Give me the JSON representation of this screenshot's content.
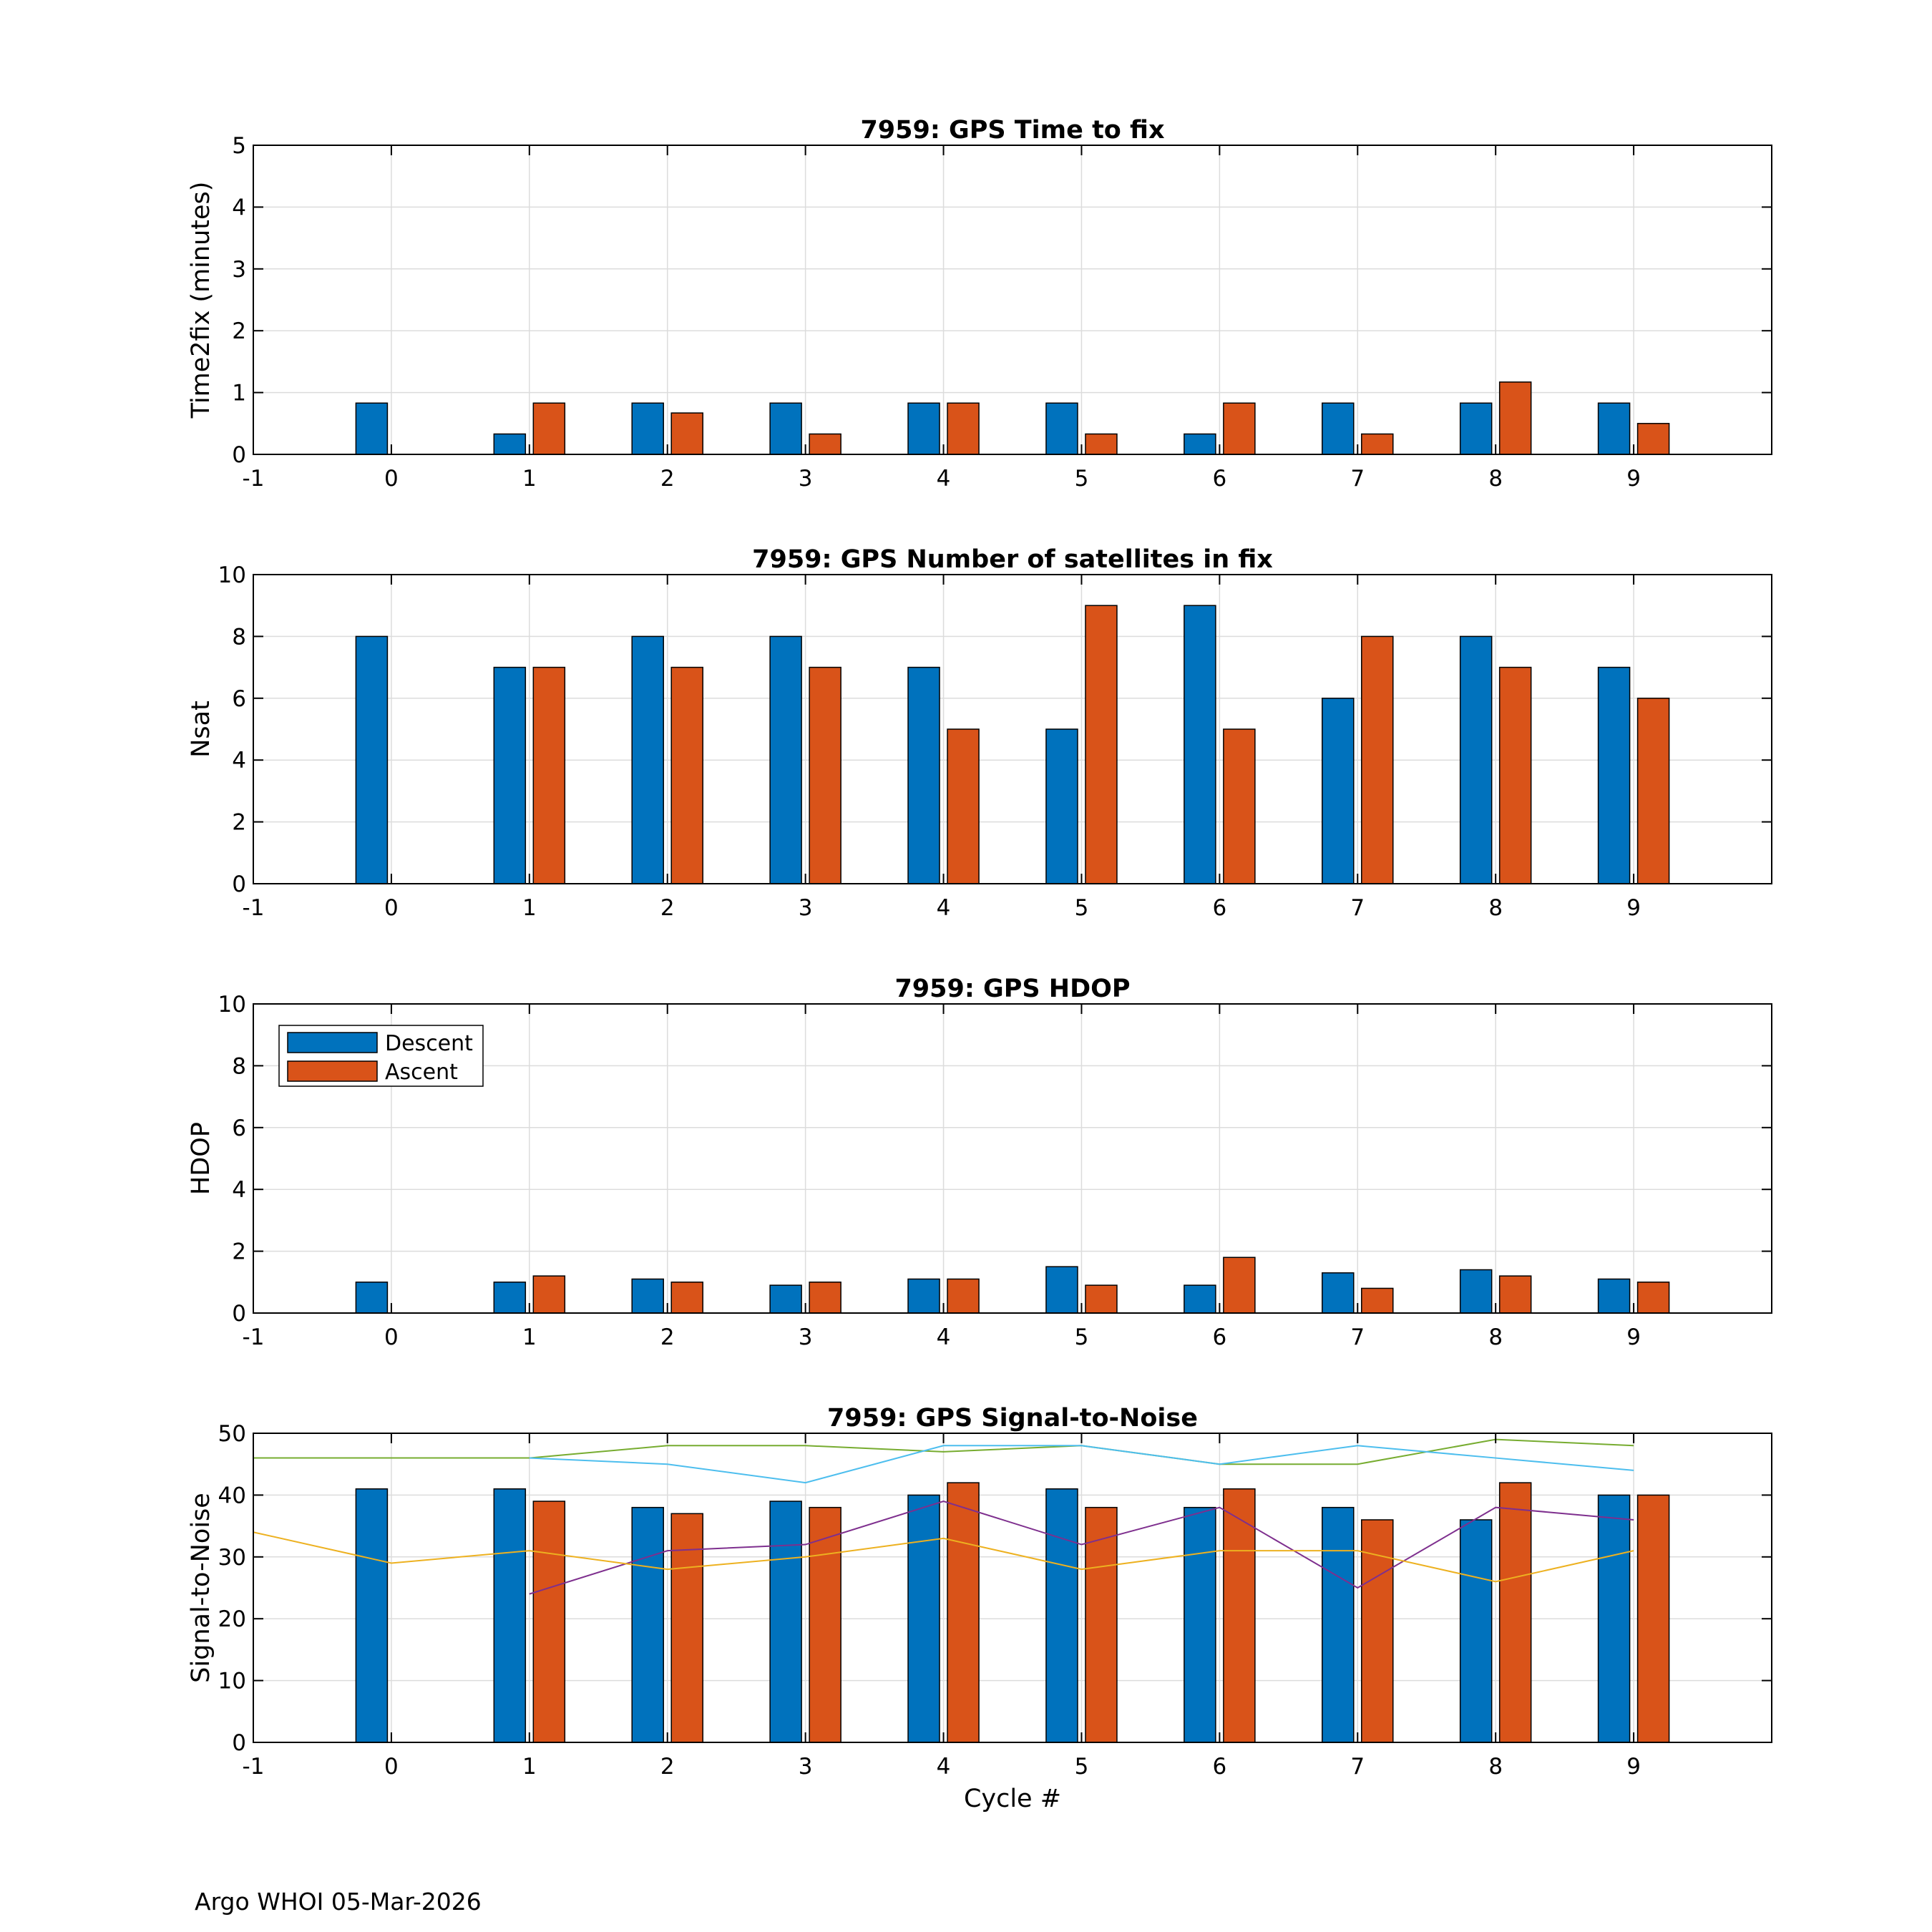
{
  "footer": "Argo WHOI 05-Mar-2026",
  "colors": {
    "descent": "#0072BD",
    "ascent": "#D95319",
    "snr_series": [
      "#77AC30",
      "#4DBEEE",
      "#7E2F8E",
      "#EDB120"
    ],
    "grid": "#dcdcdc"
  },
  "chart_data": [
    {
      "type": "bar",
      "title": "7959: GPS Time to fix",
      "xlabel": "",
      "ylabel": "Time2fix (minutes)",
      "xlim": [
        -1,
        10
      ],
      "ylim": [
        0,
        5
      ],
      "xticks": [
        -1,
        0,
        1,
        2,
        3,
        4,
        5,
        6,
        7,
        8,
        9
      ],
      "yticks": [
        0,
        1,
        2,
        3,
        4,
        5
      ],
      "categories": [
        0,
        1,
        2,
        3,
        4,
        5,
        6,
        7,
        8,
        9
      ],
      "series": [
        {
          "name": "Descent",
          "values": [
            0.83,
            0.33,
            0.83,
            0.83,
            0.83,
            0.83,
            0.33,
            0.83,
            0.83,
            0.83
          ]
        },
        {
          "name": "Ascent",
          "values": [
            0,
            0.83,
            0.67,
            0.33,
            0.83,
            0.33,
            0.83,
            0.33,
            1.17,
            0.5
          ]
        }
      ],
      "grid": true
    },
    {
      "type": "bar",
      "title": "7959: GPS Number of satellites in fix",
      "xlabel": "",
      "ylabel": "Nsat",
      "xlim": [
        -1,
        10
      ],
      "ylim": [
        0,
        10
      ],
      "xticks": [
        -1,
        0,
        1,
        2,
        3,
        4,
        5,
        6,
        7,
        8,
        9
      ],
      "yticks": [
        0,
        2,
        4,
        6,
        8,
        10
      ],
      "categories": [
        0,
        1,
        2,
        3,
        4,
        5,
        6,
        7,
        8,
        9
      ],
      "series": [
        {
          "name": "Descent",
          "values": [
            8,
            7,
            8,
            8,
            7,
            5,
            9,
            6,
            8,
            7
          ]
        },
        {
          "name": "Ascent",
          "values": [
            0,
            7,
            7,
            7,
            5,
            9,
            5,
            8,
            7,
            6
          ]
        }
      ],
      "grid": true
    },
    {
      "type": "bar",
      "title": "7959: GPS HDOP",
      "xlabel": "",
      "ylabel": "HDOP",
      "xlim": [
        -1,
        10
      ],
      "ylim": [
        0,
        10
      ],
      "xticks": [
        -1,
        0,
        1,
        2,
        3,
        4,
        5,
        6,
        7,
        8,
        9
      ],
      "yticks": [
        0,
        2,
        4,
        6,
        8,
        10
      ],
      "categories": [
        0,
        1,
        2,
        3,
        4,
        5,
        6,
        7,
        8,
        9
      ],
      "series": [
        {
          "name": "Descent",
          "values": [
            1.0,
            1.0,
            1.1,
            0.9,
            1.1,
            1.5,
            0.9,
            1.3,
            1.4,
            1.1
          ]
        },
        {
          "name": "Ascent",
          "values": [
            0,
            1.2,
            1.0,
            1.0,
            1.1,
            0.9,
            1.8,
            0.8,
            1.2,
            1.0
          ]
        }
      ],
      "legend": {
        "entries": [
          "Descent",
          "Ascent"
        ],
        "location": "top-left"
      },
      "grid": true
    },
    {
      "type": "bar",
      "title": "7959: GPS Signal-to-Noise",
      "xlabel": "Cycle #",
      "ylabel": "Signal-to-Noise",
      "xlim": [
        -1,
        10
      ],
      "ylim": [
        0,
        50
      ],
      "xticks": [
        -1,
        0,
        1,
        2,
        3,
        4,
        5,
        6,
        7,
        8,
        9
      ],
      "yticks": [
        0,
        10,
        20,
        30,
        40,
        50
      ],
      "categories": [
        0,
        1,
        2,
        3,
        4,
        5,
        6,
        7,
        8,
        9
      ],
      "series": [
        {
          "name": "Descent",
          "values": [
            41,
            41,
            38,
            39,
            40,
            41,
            38,
            38,
            36,
            40
          ]
        },
        {
          "name": "Ascent",
          "values": [
            0,
            39,
            37,
            38,
            42,
            38,
            41,
            36,
            42,
            40
          ]
        }
      ],
      "lines": [
        {
          "x": [
            -1,
            0,
            1,
            2,
            3,
            4,
            5,
            6,
            7,
            8,
            9
          ],
          "y": [
            46,
            46,
            46,
            48,
            48,
            47,
            48,
            45,
            45,
            49,
            48
          ]
        },
        {
          "x": [
            1,
            2,
            3,
            4,
            5,
            6,
            7,
            8,
            9
          ],
          "y": [
            46,
            45,
            42,
            48,
            48,
            45,
            48,
            46,
            44
          ]
        },
        {
          "x": [
            1,
            2,
            3,
            4,
            5,
            6,
            7,
            8,
            9
          ],
          "y": [
            24,
            31,
            32,
            39,
            32,
            38,
            25,
            38,
            36
          ]
        },
        {
          "x": [
            -1,
            0,
            1,
            2,
            3,
            4,
            5,
            6,
            7,
            8,
            9
          ],
          "y": [
            34,
            29,
            31,
            28,
            30,
            33,
            28,
            31,
            31,
            26,
            31
          ]
        }
      ],
      "grid": true
    }
  ]
}
